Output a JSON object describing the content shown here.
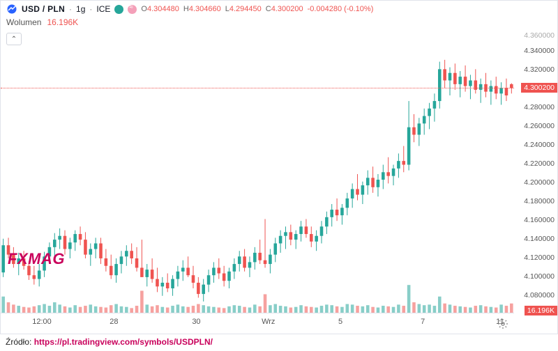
{
  "header": {
    "symbol": "USD / PLN",
    "interval": "1g",
    "exchange": "ICE",
    "separator": "·"
  },
  "ohlc": {
    "o_label": "O",
    "o_value": "4.304480",
    "o_color": "#ef5350",
    "h_label": "H",
    "h_value": "4.304660",
    "h_color": "#ef5350",
    "l_label": "L",
    "l_value": "4.294450",
    "l_color": "#ef5350",
    "c_label": "C",
    "c_value": "4.300200",
    "c_color": "#ef5350",
    "chg_value": "-0.004280 (-0.10%)",
    "chg_color": "#ef5350"
  },
  "volume": {
    "label": "Wolumen",
    "value": "16.196K",
    "tag_value": "16.196K"
  },
  "collapse_glyph": "⌃",
  "y_axis": {
    "top_label": "4.360000",
    "ticks": [
      {
        "label": "4.340000",
        "v": 4.34
      },
      {
        "label": "4.320000",
        "v": 4.32
      },
      {
        "label": "4.300000",
        "v": 4.3
      },
      {
        "label": "4.280000",
        "v": 4.28
      },
      {
        "label": "4.260000",
        "v": 4.26
      },
      {
        "label": "4.240000",
        "v": 4.24
      },
      {
        "label": "4.220000",
        "v": 4.22
      },
      {
        "label": "4.200000",
        "v": 4.2
      },
      {
        "label": "4.180000",
        "v": 4.18
      },
      {
        "label": "4.160000",
        "v": 4.16
      },
      {
        "label": "4.140000",
        "v": 4.14
      },
      {
        "label": "4.120000",
        "v": 4.12
      },
      {
        "label": "4.100000",
        "v": 4.1
      },
      {
        "label": "4.080000",
        "v": 4.08
      }
    ],
    "ymin": 4.06,
    "ymax": 4.35
  },
  "price_line": {
    "value": 4.3002,
    "label": "4.300200"
  },
  "volume_tag_y": 4.064,
  "x_axis": {
    "ticks": [
      {
        "label": "12:00",
        "pos": 0.08
      },
      {
        "label": "28",
        "pos": 0.22
      },
      {
        "label": "30",
        "pos": 0.38
      },
      {
        "label": "Wrz",
        "pos": 0.52
      },
      {
        "label": "5",
        "pos": 0.66
      },
      {
        "label": "7",
        "pos": 0.82
      },
      {
        "label": "11",
        "pos": 0.97
      }
    ]
  },
  "watermark": "FXMAG",
  "source": {
    "label": "Źródło:",
    "url": "https://pl.tradingview.com/symbols/USDPLN/"
  },
  "chart": {
    "type": "candlestick",
    "colors": {
      "up": "#26a69a",
      "down": "#ef5350",
      "wick": "#737375",
      "grid": "#f0f3fa",
      "bg": "#ffffff"
    },
    "vol_max": 60,
    "candles": [
      {
        "o": 4.103,
        "h": 4.139,
        "l": 4.098,
        "c": 4.132,
        "v": 28,
        "up": true
      },
      {
        "o": 4.132,
        "h": 4.14,
        "l": 4.118,
        "c": 4.122,
        "v": 18,
        "up": false
      },
      {
        "o": 4.122,
        "h": 4.13,
        "l": 4.108,
        "c": 4.112,
        "v": 14,
        "up": false
      },
      {
        "o": 4.112,
        "h": 4.124,
        "l": 4.1,
        "c": 4.118,
        "v": 12,
        "up": true
      },
      {
        "o": 4.118,
        "h": 4.126,
        "l": 4.106,
        "c": 4.11,
        "v": 10,
        "up": false
      },
      {
        "o": 4.11,
        "h": 4.115,
        "l": 4.095,
        "c": 4.1,
        "v": 9,
        "up": false
      },
      {
        "o": 4.1,
        "h": 4.11,
        "l": 4.09,
        "c": 4.096,
        "v": 11,
        "up": false
      },
      {
        "o": 4.096,
        "h": 4.112,
        "l": 4.088,
        "c": 4.105,
        "v": 13,
        "up": true
      },
      {
        "o": 4.105,
        "h": 4.125,
        "l": 4.098,
        "c": 4.12,
        "v": 15,
        "up": true
      },
      {
        "o": 4.12,
        "h": 4.135,
        "l": 4.112,
        "c": 4.13,
        "v": 12,
        "up": true
      },
      {
        "o": 4.13,
        "h": 4.145,
        "l": 4.12,
        "c": 4.138,
        "v": 18,
        "up": true
      },
      {
        "o": 4.138,
        "h": 4.15,
        "l": 4.128,
        "c": 4.142,
        "v": 14,
        "up": true
      },
      {
        "o": 4.142,
        "h": 4.148,
        "l": 4.122,
        "c": 4.128,
        "v": 11,
        "up": false
      },
      {
        "o": 4.128,
        "h": 4.14,
        "l": 4.118,
        "c": 4.135,
        "v": 9,
        "up": true
      },
      {
        "o": 4.135,
        "h": 4.148,
        "l": 4.126,
        "c": 4.144,
        "v": 13,
        "up": true
      },
      {
        "o": 4.144,
        "h": 4.152,
        "l": 4.132,
        "c": 4.138,
        "v": 10,
        "up": false
      },
      {
        "o": 4.138,
        "h": 4.146,
        "l": 4.118,
        "c": 4.122,
        "v": 12,
        "up": false
      },
      {
        "o": 4.122,
        "h": 4.134,
        "l": 4.11,
        "c": 4.128,
        "v": 14,
        "up": true
      },
      {
        "o": 4.128,
        "h": 4.14,
        "l": 4.118,
        "c": 4.134,
        "v": 11,
        "up": true
      },
      {
        "o": 4.134,
        "h": 4.14,
        "l": 4.112,
        "c": 4.118,
        "v": 10,
        "up": false
      },
      {
        "o": 4.118,
        "h": 4.128,
        "l": 4.104,
        "c": 4.11,
        "v": 9,
        "up": false
      },
      {
        "o": 4.11,
        "h": 4.122,
        "l": 4.096,
        "c": 4.1,
        "v": 13,
        "up": false
      },
      {
        "o": 4.1,
        "h": 4.118,
        "l": 4.092,
        "c": 4.112,
        "v": 15,
        "up": true
      },
      {
        "o": 4.112,
        "h": 4.126,
        "l": 4.102,
        "c": 4.12,
        "v": 11,
        "up": true
      },
      {
        "o": 4.12,
        "h": 4.132,
        "l": 4.11,
        "c": 4.126,
        "v": 10,
        "up": true
      },
      {
        "o": 4.126,
        "h": 4.134,
        "l": 4.112,
        "c": 4.118,
        "v": 8,
        "up": false
      },
      {
        "o": 4.118,
        "h": 4.13,
        "l": 4.104,
        "c": 4.108,
        "v": 12,
        "up": false
      },
      {
        "o": 4.108,
        "h": 4.138,
        "l": 4.098,
        "c": 4.098,
        "v": 38,
        "up": false
      },
      {
        "o": 4.098,
        "h": 4.112,
        "l": 4.088,
        "c": 4.106,
        "v": 14,
        "up": true
      },
      {
        "o": 4.106,
        "h": 4.118,
        "l": 4.092,
        "c": 4.096,
        "v": 11,
        "up": false
      },
      {
        "o": 4.096,
        "h": 4.108,
        "l": 4.082,
        "c": 4.088,
        "v": 13,
        "up": false
      },
      {
        "o": 4.088,
        "h": 4.098,
        "l": 4.078,
        "c": 4.092,
        "v": 10,
        "up": true
      },
      {
        "o": 4.092,
        "h": 4.102,
        "l": 4.082,
        "c": 4.086,
        "v": 9,
        "up": false
      },
      {
        "o": 4.086,
        "h": 4.1,
        "l": 4.078,
        "c": 4.096,
        "v": 12,
        "up": true
      },
      {
        "o": 4.096,
        "h": 4.11,
        "l": 4.088,
        "c": 4.104,
        "v": 14,
        "up": true
      },
      {
        "o": 4.104,
        "h": 4.116,
        "l": 4.094,
        "c": 4.108,
        "v": 11,
        "up": true
      },
      {
        "o": 4.108,
        "h": 4.12,
        "l": 4.098,
        "c": 4.1,
        "v": 10,
        "up": false
      },
      {
        "o": 4.1,
        "h": 4.11,
        "l": 4.086,
        "c": 4.092,
        "v": 12,
        "up": false
      },
      {
        "o": 4.092,
        "h": 4.098,
        "l": 4.076,
        "c": 4.08,
        "v": 15,
        "up": false
      },
      {
        "o": 4.08,
        "h": 4.096,
        "l": 4.072,
        "c": 4.09,
        "v": 13,
        "up": true
      },
      {
        "o": 4.09,
        "h": 4.106,
        "l": 4.082,
        "c": 4.1,
        "v": 11,
        "up": true
      },
      {
        "o": 4.1,
        "h": 4.114,
        "l": 4.092,
        "c": 4.108,
        "v": 10,
        "up": true
      },
      {
        "o": 4.108,
        "h": 4.118,
        "l": 4.096,
        "c": 4.102,
        "v": 9,
        "up": false
      },
      {
        "o": 4.102,
        "h": 4.11,
        "l": 4.088,
        "c": 4.094,
        "v": 8,
        "up": false
      },
      {
        "o": 4.094,
        "h": 4.108,
        "l": 4.086,
        "c": 4.104,
        "v": 11,
        "up": true
      },
      {
        "o": 4.104,
        "h": 4.118,
        "l": 4.096,
        "c": 4.112,
        "v": 13,
        "up": true
      },
      {
        "o": 4.112,
        "h": 4.126,
        "l": 4.104,
        "c": 4.12,
        "v": 12,
        "up": true
      },
      {
        "o": 4.12,
        "h": 4.128,
        "l": 4.104,
        "c": 4.108,
        "v": 10,
        "up": false
      },
      {
        "o": 4.108,
        "h": 4.12,
        "l": 4.098,
        "c": 4.114,
        "v": 9,
        "up": true
      },
      {
        "o": 4.114,
        "h": 4.13,
        "l": 4.106,
        "c": 4.124,
        "v": 14,
        "up": true
      },
      {
        "o": 4.124,
        "h": 4.138,
        "l": 4.112,
        "c": 4.116,
        "v": 11,
        "up": false
      },
      {
        "o": 4.116,
        "h": 4.16,
        "l": 4.108,
        "c": 4.112,
        "v": 32,
        "up": false
      },
      {
        "o": 4.112,
        "h": 4.128,
        "l": 4.102,
        "c": 4.122,
        "v": 13,
        "up": true
      },
      {
        "o": 4.122,
        "h": 4.14,
        "l": 4.114,
        "c": 4.134,
        "v": 15,
        "up": true
      },
      {
        "o": 4.134,
        "h": 4.148,
        "l": 4.124,
        "c": 4.142,
        "v": 12,
        "up": true
      },
      {
        "o": 4.142,
        "h": 4.152,
        "l": 4.128,
        "c": 4.146,
        "v": 11,
        "up": true
      },
      {
        "o": 4.146,
        "h": 4.154,
        "l": 4.132,
        "c": 4.138,
        "v": 9,
        "up": false
      },
      {
        "o": 4.138,
        "h": 4.148,
        "l": 4.128,
        "c": 4.144,
        "v": 10,
        "up": true
      },
      {
        "o": 4.144,
        "h": 4.158,
        "l": 4.136,
        "c": 4.152,
        "v": 13,
        "up": true
      },
      {
        "o": 4.152,
        "h": 4.16,
        "l": 4.14,
        "c": 4.144,
        "v": 11,
        "up": false
      },
      {
        "o": 4.144,
        "h": 4.152,
        "l": 4.13,
        "c": 4.136,
        "v": 10,
        "up": false
      },
      {
        "o": 4.136,
        "h": 4.148,
        "l": 4.126,
        "c": 4.142,
        "v": 9,
        "up": true
      },
      {
        "o": 4.142,
        "h": 4.158,
        "l": 4.134,
        "c": 4.152,
        "v": 12,
        "up": true
      },
      {
        "o": 4.152,
        "h": 4.168,
        "l": 4.144,
        "c": 4.162,
        "v": 14,
        "up": true
      },
      {
        "o": 4.162,
        "h": 4.176,
        "l": 4.152,
        "c": 4.17,
        "v": 13,
        "up": true
      },
      {
        "o": 4.17,
        "h": 4.182,
        "l": 4.158,
        "c": 4.164,
        "v": 11,
        "up": false
      },
      {
        "o": 4.164,
        "h": 4.176,
        "l": 4.154,
        "c": 4.172,
        "v": 10,
        "up": true
      },
      {
        "o": 4.172,
        "h": 4.188,
        "l": 4.164,
        "c": 4.182,
        "v": 15,
        "up": true
      },
      {
        "o": 4.182,
        "h": 4.198,
        "l": 4.172,
        "c": 4.192,
        "v": 14,
        "up": true
      },
      {
        "o": 4.192,
        "h": 4.208,
        "l": 4.18,
        "c": 4.186,
        "v": 12,
        "up": false
      },
      {
        "o": 4.186,
        "h": 4.2,
        "l": 4.176,
        "c": 4.196,
        "v": 11,
        "up": true
      },
      {
        "o": 4.196,
        "h": 4.212,
        "l": 4.186,
        "c": 4.204,
        "v": 13,
        "up": true
      },
      {
        "o": 4.204,
        "h": 4.216,
        "l": 4.188,
        "c": 4.194,
        "v": 10,
        "up": false
      },
      {
        "o": 4.194,
        "h": 4.208,
        "l": 4.184,
        "c": 4.202,
        "v": 9,
        "up": true
      },
      {
        "o": 4.202,
        "h": 4.218,
        "l": 4.192,
        "c": 4.21,
        "v": 12,
        "up": true
      },
      {
        "o": 4.21,
        "h": 4.226,
        "l": 4.198,
        "c": 4.206,
        "v": 11,
        "up": false
      },
      {
        "o": 4.206,
        "h": 4.218,
        "l": 4.196,
        "c": 4.214,
        "v": 10,
        "up": true
      },
      {
        "o": 4.214,
        "h": 4.23,
        "l": 4.204,
        "c": 4.222,
        "v": 14,
        "up": true
      },
      {
        "o": 4.222,
        "h": 4.238,
        "l": 4.21,
        "c": 4.218,
        "v": 12,
        "up": false
      },
      {
        "o": 4.218,
        "h": 4.286,
        "l": 4.212,
        "c": 4.258,
        "v": 48,
        "up": true
      },
      {
        "o": 4.258,
        "h": 4.272,
        "l": 4.242,
        "c": 4.25,
        "v": 18,
        "up": false
      },
      {
        "o": 4.25,
        "h": 4.268,
        "l": 4.238,
        "c": 4.262,
        "v": 15,
        "up": true
      },
      {
        "o": 4.262,
        "h": 4.278,
        "l": 4.25,
        "c": 4.27,
        "v": 13,
        "up": true
      },
      {
        "o": 4.27,
        "h": 4.284,
        "l": 4.256,
        "c": 4.278,
        "v": 14,
        "up": true
      },
      {
        "o": 4.278,
        "h": 4.294,
        "l": 4.264,
        "c": 4.286,
        "v": 12,
        "up": true
      },
      {
        "o": 4.286,
        "h": 4.328,
        "l": 4.278,
        "c": 4.32,
        "v": 28,
        "up": true
      },
      {
        "o": 4.32,
        "h": 4.33,
        "l": 4.3,
        "c": 4.308,
        "v": 16,
        "up": false
      },
      {
        "o": 4.308,
        "h": 4.322,
        "l": 4.292,
        "c": 4.316,
        "v": 14,
        "up": true
      },
      {
        "o": 4.316,
        "h": 4.326,
        "l": 4.298,
        "c": 4.304,
        "v": 12,
        "up": false
      },
      {
        "o": 4.304,
        "h": 4.318,
        "l": 4.29,
        "c": 4.312,
        "v": 11,
        "up": true
      },
      {
        "o": 4.312,
        "h": 4.324,
        "l": 4.296,
        "c": 4.302,
        "v": 10,
        "up": false
      },
      {
        "o": 4.302,
        "h": 4.314,
        "l": 4.288,
        "c": 4.308,
        "v": 9,
        "up": true
      },
      {
        "o": 4.308,
        "h": 4.32,
        "l": 4.294,
        "c": 4.298,
        "v": 12,
        "up": false
      },
      {
        "o": 4.298,
        "h": 4.31,
        "l": 4.284,
        "c": 4.304,
        "v": 13,
        "up": true
      },
      {
        "o": 4.304,
        "h": 4.316,
        "l": 4.29,
        "c": 4.296,
        "v": 11,
        "up": false
      },
      {
        "o": 4.296,
        "h": 4.308,
        "l": 4.282,
        "c": 4.302,
        "v": 10,
        "up": true
      },
      {
        "o": 4.302,
        "h": 4.312,
        "l": 4.288,
        "c": 4.294,
        "v": 9,
        "up": false
      },
      {
        "o": 4.294,
        "h": 4.306,
        "l": 4.282,
        "c": 4.3,
        "v": 14,
        "up": true
      },
      {
        "o": 4.3,
        "h": 4.31,
        "l": 4.286,
        "c": 4.292,
        "v": 12,
        "up": false
      },
      {
        "o": 4.304,
        "h": 4.305,
        "l": 4.294,
        "c": 4.3,
        "v": 16,
        "up": false
      }
    ]
  }
}
